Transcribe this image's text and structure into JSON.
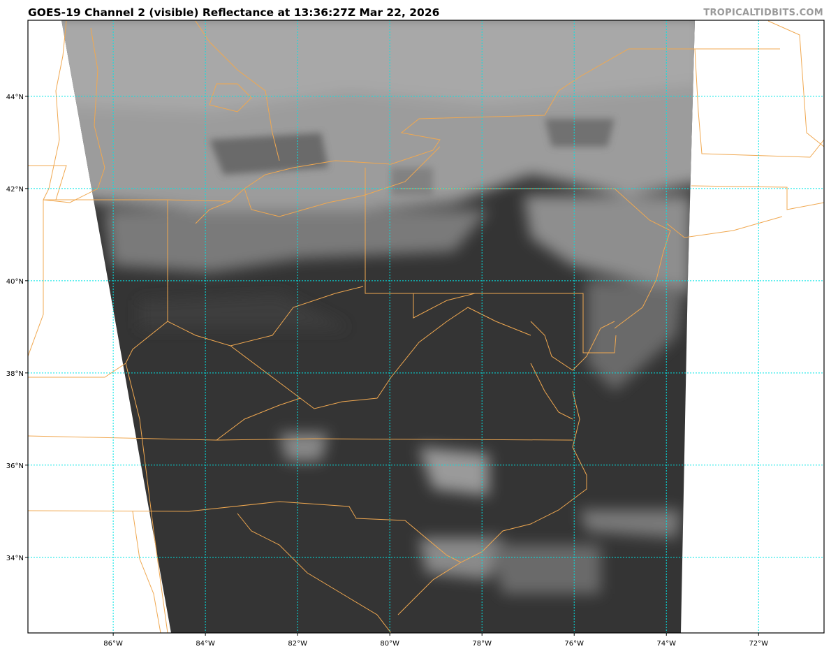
{
  "title": "GOES-19 Channel 2 (visible) Reflectance at 13:36:27Z Mar 22, 2026",
  "watermark": "TROPICALTIDBITS.COM",
  "map": {
    "projection": "equirectangular",
    "extent": {
      "lon": [
        -87.85,
        -70.58
      ],
      "lat": [
        32.36,
        45.65
      ]
    },
    "gridline_color": "#00e5e5",
    "border_color": "#f0a850",
    "lon_ticks": [
      {
        "value": -86,
        "label": "86°W"
      },
      {
        "value": -84,
        "label": "84°W"
      },
      {
        "value": -82,
        "label": "82°W"
      },
      {
        "value": -80,
        "label": "80°W"
      },
      {
        "value": -78,
        "label": "78°W"
      },
      {
        "value": -76,
        "label": "76°W"
      },
      {
        "value": -74,
        "label": "74°W"
      },
      {
        "value": -72,
        "label": "72°W"
      }
    ],
    "lat_ticks": [
      {
        "value": 44,
        "label": "44°N"
      },
      {
        "value": 42,
        "label": "42°N"
      },
      {
        "value": 40,
        "label": "40°N"
      },
      {
        "value": 38,
        "label": "38°N"
      },
      {
        "value": 36,
        "label": "36°N"
      },
      {
        "value": 34,
        "label": "34°N"
      }
    ]
  }
}
